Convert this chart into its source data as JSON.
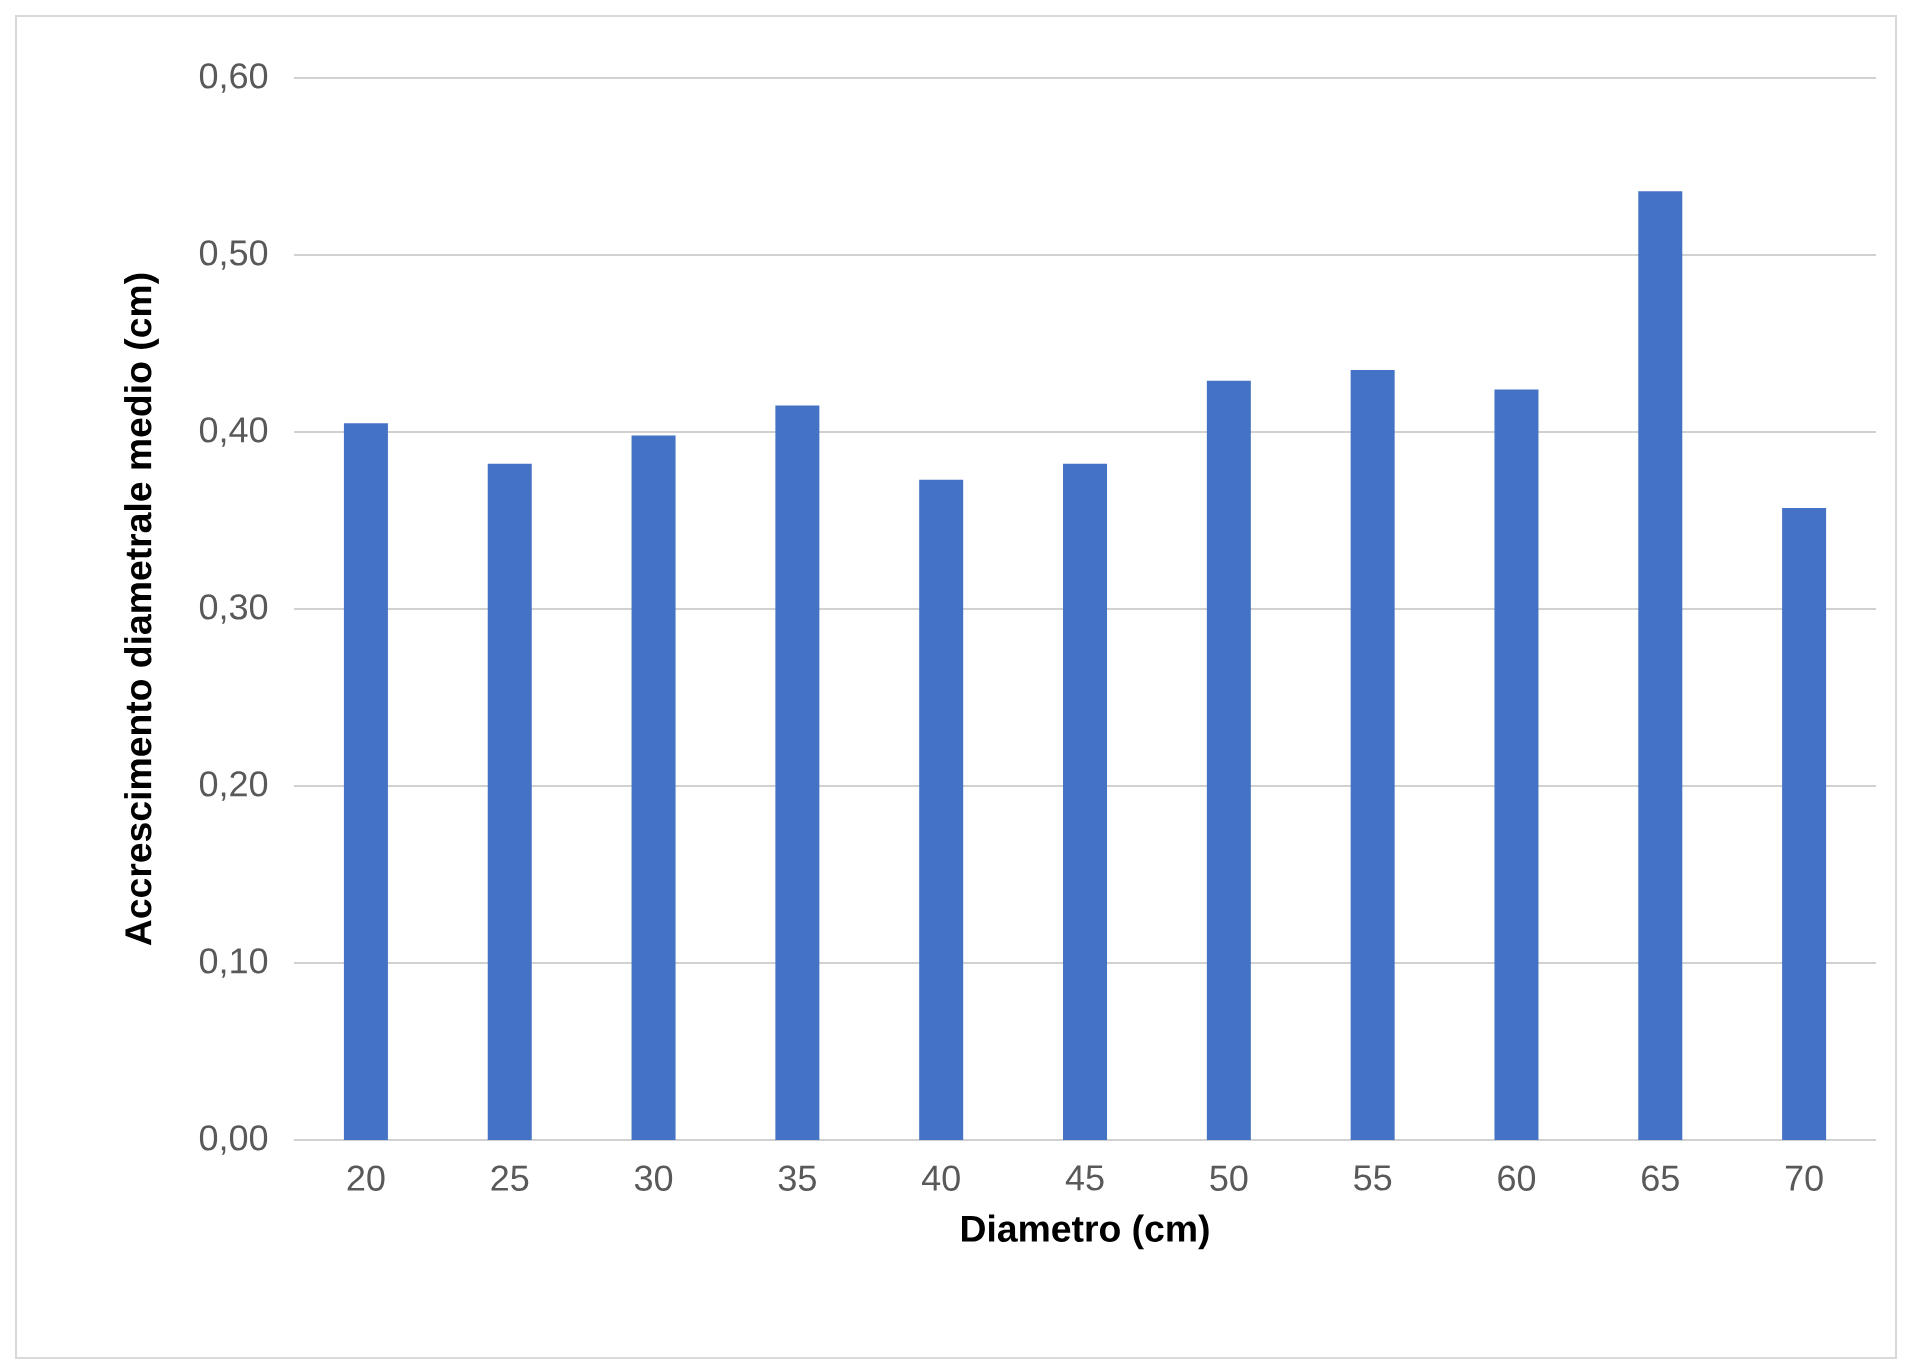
{
  "chart_data": {
    "type": "bar",
    "xlabel": "Diametro (cm)",
    "ylabel": "Accrescimento diametrale medio (cm)",
    "categories": [
      "20",
      "25",
      "30",
      "35",
      "40",
      "45",
      "50",
      "55",
      "60",
      "65",
      "70"
    ],
    "values": [
      0.405,
      0.382,
      0.398,
      0.415,
      0.373,
      0.382,
      0.429,
      0.435,
      0.424,
      0.536,
      0.357
    ],
    "color": "#4472c4",
    "ylim": [
      0,
      0.6
    ],
    "yticks": [
      {
        "value": 0,
        "label": "0,00"
      },
      {
        "value": 0.1,
        "label": "0,10"
      },
      {
        "value": 0.2,
        "label": "0,20"
      },
      {
        "value": 0.3,
        "label": "0,30"
      },
      {
        "value": 0.4,
        "label": "0,40"
      },
      {
        "value": 0.5,
        "label": "0,50"
      },
      {
        "value": 0.6,
        "label": "0,60"
      }
    ],
    "grid": "y"
  }
}
